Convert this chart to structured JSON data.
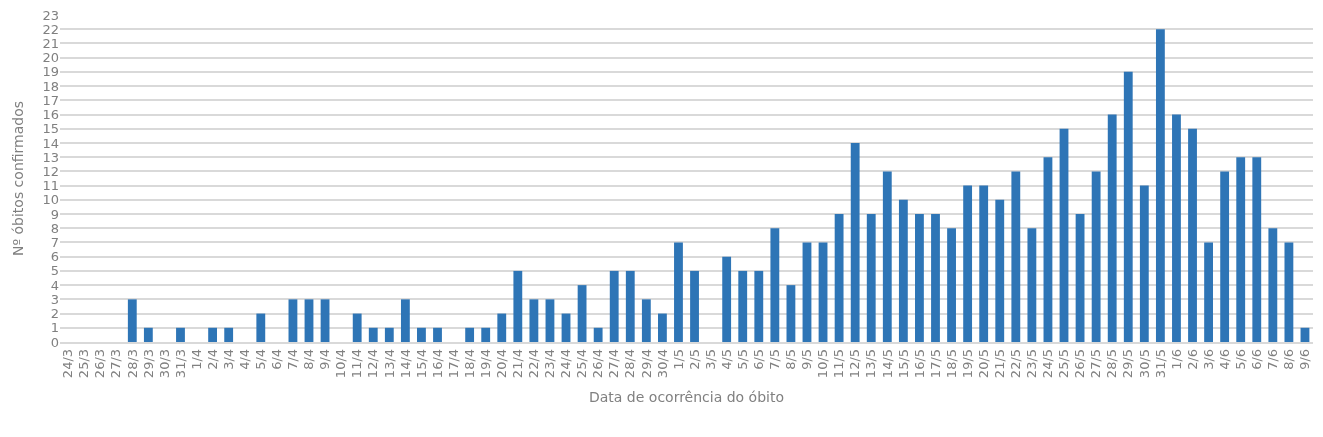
{
  "chart_data": {
    "type": "bar",
    "xlabel": "Data de ocorrência do óbito",
    "ylabel": "Nº óbitos confirmados",
    "categories": [
      "24/3",
      "25/3",
      "26/3",
      "27/3",
      "28/3",
      "29/3",
      "30/3",
      "31/3",
      "1/4",
      "2/4",
      "3/4",
      "4/4",
      "5/4",
      "6/4",
      "7/4",
      "8/4",
      "9/4",
      "10/4",
      "11/4",
      "12/4",
      "13/4",
      "14/4",
      "15/4",
      "16/4",
      "17/4",
      "18/4",
      "19/4",
      "20/4",
      "21/4",
      "22/4",
      "23/4",
      "24/4",
      "25/4",
      "26/4",
      "27/4",
      "28/4",
      "29/4",
      "30/4",
      "1/5",
      "2/5",
      "3/5",
      "4/5",
      "5/5",
      "6/5",
      "7/5",
      "8/5",
      "9/5",
      "10/5",
      "11/5",
      "12/5",
      "13/5",
      "14/5",
      "15/5",
      "16/5",
      "17/5",
      "18/5",
      "19/5",
      "20/5",
      "21/5",
      "22/5",
      "23/5",
      "24/5",
      "25/5",
      "26/5",
      "27/5",
      "28/5",
      "29/5",
      "30/5",
      "31/5",
      "1/6",
      "2/6",
      "3/6",
      "4/6",
      "5/6",
      "6/6",
      "7/6",
      "8/6",
      "9/6"
    ],
    "values": [
      0,
      0,
      0,
      0,
      3,
      1,
      0,
      1,
      0,
      1,
      1,
      0,
      2,
      0,
      3,
      3,
      3,
      0,
      2,
      1,
      1,
      3,
      1,
      1,
      0,
      1,
      1,
      2,
      5,
      3,
      3,
      2,
      4,
      1,
      5,
      5,
      3,
      2,
      7,
      5,
      0,
      6,
      5,
      5,
      8,
      4,
      7,
      7,
      9,
      14,
      9,
      12,
      10,
      9,
      9,
      8,
      11,
      11,
      10,
      12,
      8,
      13,
      15,
      9,
      12,
      16,
      19,
      11,
      22,
      16,
      15,
      7,
      12,
      13,
      13,
      8,
      7,
      1
    ],
    "color": "#2e75b6",
    "ylim": [
      0,
      23
    ],
    "yticks": [
      0,
      1,
      2,
      3,
      4,
      5,
      6,
      7,
      8,
      9,
      10,
      11,
      12,
      13,
      14,
      15,
      16,
      17,
      18,
      19,
      20,
      21,
      22,
      23
    ],
    "grid": "y"
  }
}
